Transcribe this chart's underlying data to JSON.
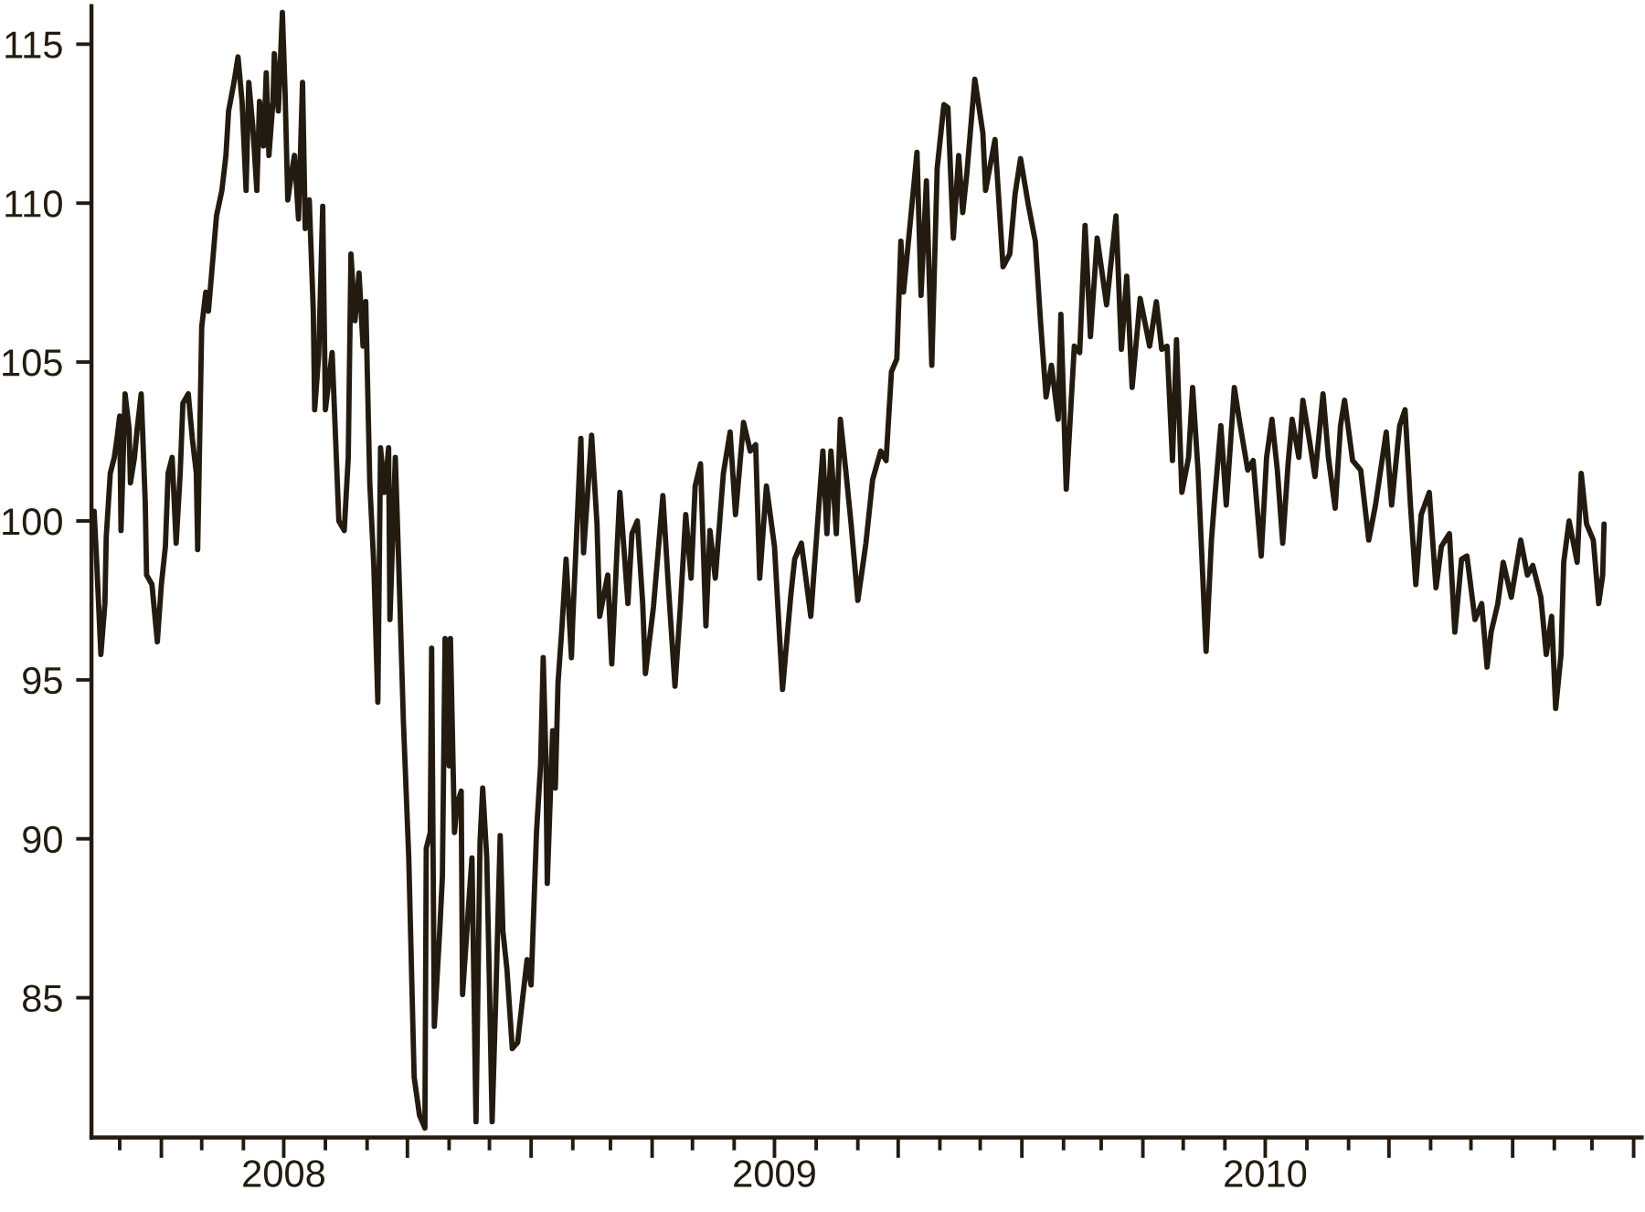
{
  "chart_data": {
    "type": "line",
    "color": "#231b0f",
    "marker": "none",
    "line_style": "solid",
    "grid": false,
    "x": [
      "2008-02-11",
      "2008-02-13",
      "2008-02-16",
      "2008-02-19",
      "2008-02-20",
      "2008-02-23",
      "2008-02-26",
      "2008-02-28",
      "2008-03-01",
      "2008-03-02",
      "2008-03-05",
      "2008-03-08",
      "2008-03-09",
      "2008-03-12",
      "2008-03-14",
      "2008-03-17",
      "2008-03-20",
      "2008-03-21",
      "2008-03-25",
      "2008-03-29",
      "2008-04-01",
      "2008-04-04",
      "2008-04-06",
      "2008-04-09",
      "2008-04-12",
      "2008-04-15",
      "2008-04-17",
      "2008-04-21",
      "2008-04-24",
      "2008-04-27",
      "2008-04-28",
      "2008-05-01",
      "2008-05-04",
      "2008-05-06",
      "2008-05-10",
      "2008-05-12",
      "2008-05-16",
      "2008-05-19",
      "2008-05-21",
      "2008-05-25",
      "2008-05-28",
      "2008-05-31",
      "2008-06-03",
      "2008-06-05",
      "2008-06-08",
      "2008-06-11",
      "2008-06-13",
      "2008-06-16",
      "2008-06-18",
      "2008-06-20",
      "2008-06-23",
      "2008-06-24",
      "2008-06-27",
      "2008-06-30",
      "2008-07-02",
      "2008-07-04",
      "2008-07-07",
      "2008-07-09",
      "2008-07-12",
      "2008-07-15",
      "2008-07-17",
      "2008-07-20",
      "2008-07-23",
      "2008-07-24",
      "2008-07-27",
      "2008-07-30",
      "2008-08-01",
      "2008-08-06",
      "2008-08-08",
      "2008-08-11",
      "2008-08-15",
      "2008-08-18",
      "2008-08-20",
      "2008-08-23",
      "2008-08-26",
      "2008-08-29",
      "2008-08-31",
      "2008-09-03",
      "2008-09-06",
      "2008-09-09",
      "2008-09-11",
      "2008-09-14",
      "2008-09-17",
      "2008-09-18",
      "2008-09-22",
      "2008-09-25",
      "2008-09-28",
      "2008-10-02",
      "2008-10-06",
      "2008-10-10",
      "2008-10-14",
      "2008-10-15",
      "2008-10-18",
      "2008-10-19",
      "2008-10-21",
      "2008-10-25",
      "2008-10-27",
      "2008-10-29",
      "2008-11-01",
      "2008-11-02",
      "2008-11-05",
      "2008-11-07",
      "2008-11-10",
      "2008-11-11",
      "2008-11-16",
      "2008-11-18",
      "2008-11-21",
      "2008-11-24",
      "2008-11-26",
      "2008-11-29",
      "2008-12-01",
      "2008-12-03",
      "2008-12-06",
      "2008-12-09",
      "2008-12-11",
      "2008-12-14",
      "2008-12-18",
      "2008-12-22",
      "2008-12-26",
      "2008-12-29",
      "2009-01-01",
      "2009-01-05",
      "2009-01-08",
      "2009-01-10",
      "2009-01-12",
      "2009-01-13",
      "2009-01-17",
      "2009-01-19",
      "2009-01-21",
      "2009-01-24",
      "2009-01-27",
      "2009-01-31",
      "2009-02-01",
      "2009-02-07",
      "2009-02-09",
      "2009-02-15",
      "2009-02-19",
      "2009-02-21",
      "2009-02-27",
      "2009-03-02",
      "2009-03-06",
      "2009-03-08",
      "2009-03-14",
      "2009-03-17",
      "2009-03-21",
      "2009-03-25",
      "2009-03-27",
      "2009-04-02",
      "2009-04-06",
      "2009-04-09",
      "2009-04-13",
      "2009-04-18",
      "2009-04-22",
      "2009-04-26",
      "2009-04-30",
      "2009-05-03",
      "2009-05-07",
      "2009-05-11",
      "2009-05-14",
      "2009-05-18",
      "2009-05-24",
      "2009-05-29",
      "2009-06-02",
      "2009-06-08",
      "2009-06-13",
      "2009-06-17",
      "2009-06-20",
      "2009-06-25",
      "2009-07-01",
      "2009-07-07",
      "2009-07-13",
      "2009-07-16",
      "2009-07-21",
      "2009-07-28",
      "2009-08-02",
      "2009-08-06",
      "2009-08-09",
      "2009-08-12",
      "2009-08-16",
      "2009-08-19",
      "2009-08-23",
      "2009-08-27",
      "2009-09-01",
      "2009-09-07",
      "2009-09-12",
      "2009-09-18",
      "2009-09-22",
      "2009-09-26",
      "2009-09-30",
      "2009-10-03",
      "2009-10-05",
      "2009-10-15",
      "2009-10-18",
      "2009-10-22",
      "2009-10-26",
      "2009-10-30",
      "2009-11-04",
      "2009-11-07",
      "2009-11-11",
      "2009-11-15",
      "2009-11-18",
      "2009-11-21",
      "2009-11-27",
      "2009-12-03",
      "2009-12-05",
      "2009-12-12",
      "2009-12-18",
      "2009-12-23",
      "2009-12-27",
      "2009-12-31",
      "2010-01-06",
      "2010-01-11",
      "2010-01-15",
      "2010-01-19",
      "2010-01-23",
      "2010-01-28",
      "2010-01-30",
      "2010-02-03",
      "2010-02-09",
      "2010-02-13",
      "2010-02-17",
      "2010-02-21",
      "2010-02-26",
      "2010-03-05",
      "2010-03-12",
      "2010-03-16",
      "2010-03-20",
      "2010-03-24",
      "2010-03-30",
      "2010-04-06",
      "2010-04-11",
      "2010-04-15",
      "2010-04-19",
      "2010-04-23",
      "2010-04-26",
      "2010-04-30",
      "2010-05-05",
      "2010-05-08",
      "2010-05-12",
      "2010-05-18",
      "2010-05-22",
      "2010-05-24",
      "2010-05-29",
      "2010-06-02",
      "2010-06-08",
      "2010-06-12",
      "2010-06-18",
      "2010-06-22",
      "2010-06-28",
      "2010-07-02",
      "2010-07-06",
      "2010-07-10",
      "2010-07-14",
      "2010-07-18",
      "2010-07-21",
      "2010-07-26",
      "2010-07-29",
      "2010-08-03",
      "2010-08-07",
      "2010-08-13",
      "2010-08-17",
      "2010-08-22",
      "2010-08-26",
      "2010-08-29",
      "2010-09-04",
      "2010-09-10",
      "2010-09-16",
      "2010-09-21",
      "2010-09-29",
      "2010-10-03",
      "2010-10-09",
      "2010-10-13",
      "2010-10-17",
      "2010-10-21",
      "2010-10-25",
      "2010-10-31",
      "2010-11-05",
      "2010-11-09",
      "2010-11-15",
      "2010-11-19",
      "2010-11-24",
      "2010-11-28",
      "2010-12-04",
      "2010-12-09",
      "2010-12-13",
      "2010-12-16",
      "2010-12-21",
      "2010-12-25",
      "2010-12-31",
      "2011-01-07",
      "2011-01-12",
      "2011-01-16",
      "2011-01-22",
      "2011-01-26",
      "2011-01-30",
      "2011-02-02",
      "2011-02-06",
      "2011-02-08",
      "2011-02-12",
      "2011-02-18",
      "2011-02-21",
      "2011-02-25",
      "2011-03-02",
      "2011-03-06",
      "2011-03-09",
      "2011-03-10"
    ],
    "values": [
      100.3,
      98.6,
      95.8,
      97.4,
      99.5,
      101.5,
      102.0,
      102.6,
      103.3,
      99.7,
      104.0,
      102.9,
      101.2,
      102.0,
      102.9,
      104.0,
      100.6,
      98.3,
      98.0,
      96.2,
      98.0,
      99.2,
      101.5,
      102.0,
      99.3,
      101.5,
      103.7,
      104.0,
      102.6,
      101.5,
      99.1,
      106.1,
      107.2,
      106.6,
      108.6,
      109.6,
      110.4,
      111.5,
      112.9,
      113.8,
      114.6,
      113.2,
      110.4,
      113.8,
      112.4,
      110.4,
      113.2,
      111.8,
      114.1,
      111.5,
      113.2,
      114.7,
      112.9,
      116.0,
      113.5,
      110.1,
      111.0,
      111.5,
      109.5,
      113.8,
      109.2,
      110.1,
      106.6,
      103.5,
      105.2,
      109.9,
      103.5,
      105.3,
      103.2,
      100.0,
      99.7,
      102.0,
      108.4,
      106.3,
      107.8,
      105.5,
      106.9,
      101.2,
      98.6,
      94.3,
      102.3,
      100.9,
      102.3,
      96.9,
      102.0,
      98.0,
      93.7,
      89.4,
      82.5,
      81.3,
      80.9,
      89.7,
      90.2,
      96.0,
      84.1,
      87.1,
      88.8,
      96.3,
      92.3,
      96.3,
      90.2,
      91.1,
      91.5,
      85.1,
      88.2,
      89.4,
      81.1,
      89.9,
      91.6,
      89.4,
      85.4,
      81.1,
      85.4,
      90.1,
      87.1,
      85.9,
      83.4,
      83.6,
      85.1,
      86.2,
      85.4,
      90.2,
      92.3,
      95.7,
      92.5,
      88.6,
      93.4,
      91.6,
      94.9,
      96.7,
      98.8,
      95.7,
      96.9,
      102.6,
      99.0,
      102.7,
      99.9,
      97.0,
      98.3,
      95.5,
      99.2,
      100.9,
      97.4,
      99.6,
      100.0,
      97.4,
      95.2,
      97.3,
      99.3,
      100.8,
      98.0,
      94.8,
      97.3,
      100.2,
      98.2,
      101.1,
      101.8,
      96.7,
      99.7,
      98.2,
      101.5,
      102.8,
      100.2,
      103.1,
      102.2,
      102.4,
      98.2,
      101.1,
      99.2,
      94.7,
      97.6,
      98.8,
      99.3,
      97.0,
      99.9,
      102.2,
      99.6,
      102.2,
      99.6,
      103.2,
      101.6,
      99.9,
      97.5,
      99.3,
      101.3,
      102.2,
      101.9,
      104.7,
      105.1,
      108.8,
      107.2,
      111.6,
      107.1,
      110.7,
      104.9,
      111.1,
      113.1,
      113.0,
      108.9,
      111.5,
      109.7,
      110.9,
      113.9,
      112.2,
      110.4,
      112.0,
      108.0,
      108.4,
      110.3,
      111.4,
      109.9,
      108.8,
      106.2,
      103.9,
      104.9,
      103.2,
      106.5,
      101.0,
      105.5,
      105.3,
      109.3,
      105.8,
      108.9,
      106.8,
      109.6,
      105.4,
      107.7,
      104.2,
      107.0,
      105.5,
      106.9,
      105.4,
      105.5,
      101.9,
      105.7,
      100.9,
      102.0,
      104.2,
      101.6,
      95.9,
      99.4,
      100.5,
      103.0,
      100.5,
      104.2,
      103.1,
      101.6,
      101.9,
      98.9,
      102.0,
      103.2,
      101.6,
      99.3,
      101.8,
      103.2,
      102.0,
      103.8,
      102.5,
      101.4,
      104.0,
      102.0,
      100.4,
      103.0,
      103.8,
      101.9,
      101.6,
      99.4,
      100.5,
      102.8,
      100.5,
      103.0,
      103.5,
      100.5,
      98.0,
      100.2,
      100.9,
      97.9,
      99.2,
      99.6,
      96.5,
      98.8,
      98.9,
      96.9,
      97.4,
      95.4,
      96.5,
      97.4,
      98.7,
      97.6,
      99.4,
      98.3,
      98.6,
      97.6,
      95.8,
      97.0,
      94.1,
      95.8,
      98.7,
      100.0,
      98.7,
      101.5,
      99.9,
      99.4,
      97.4,
      98.3,
      99.9
    ],
    "xlim": [
      "2008-02-09",
      "2011-04-07"
    ],
    "ylim": [
      80.6,
      116.2
    ],
    "yticks": [
      85,
      90,
      95,
      100,
      105,
      110,
      115
    ],
    "xticks": [
      {
        "value": "2008-03-01",
        "label": null
      },
      {
        "value": "2008-04-01",
        "label": null
      },
      {
        "value": "2008-05-01",
        "label": null
      },
      {
        "value": "2008-06-01",
        "label": null
      },
      {
        "value": "2008-07-01",
        "label": "2008"
      },
      {
        "value": "2008-08-01",
        "label": null
      },
      {
        "value": "2008-09-01",
        "label": null
      },
      {
        "value": "2008-10-01",
        "label": null
      },
      {
        "value": "2008-11-01",
        "label": null
      },
      {
        "value": "2008-12-01",
        "label": null
      },
      {
        "value": "2009-01-01",
        "label": null
      },
      {
        "value": "2009-02-01",
        "label": null
      },
      {
        "value": "2009-03-01",
        "label": null
      },
      {
        "value": "2009-04-01",
        "label": null
      },
      {
        "value": "2009-05-01",
        "label": null
      },
      {
        "value": "2009-06-01",
        "label": null
      },
      {
        "value": "2009-07-01",
        "label": "2009"
      },
      {
        "value": "2009-08-01",
        "label": null
      },
      {
        "value": "2009-09-01",
        "label": null
      },
      {
        "value": "2009-10-01",
        "label": null
      },
      {
        "value": "2009-11-01",
        "label": null
      },
      {
        "value": "2009-12-01",
        "label": null
      },
      {
        "value": "2010-01-01",
        "label": null
      },
      {
        "value": "2010-02-01",
        "label": null
      },
      {
        "value": "2010-03-01",
        "label": null
      },
      {
        "value": "2010-04-01",
        "label": null
      },
      {
        "value": "2010-05-01",
        "label": null
      },
      {
        "value": "2010-06-01",
        "label": null
      },
      {
        "value": "2010-07-01",
        "label": "2010"
      },
      {
        "value": "2010-08-01",
        "label": null
      },
      {
        "value": "2010-09-01",
        "label": null
      },
      {
        "value": "2010-10-01",
        "label": null
      },
      {
        "value": "2010-11-01",
        "label": null
      },
      {
        "value": "2010-12-01",
        "label": null
      },
      {
        "value": "2011-01-01",
        "label": null
      },
      {
        "value": "2011-02-01",
        "label": null
      },
      {
        "value": "2011-03-01",
        "label": null
      },
      {
        "value": "2011-04-01",
        "label": null
      }
    ]
  }
}
